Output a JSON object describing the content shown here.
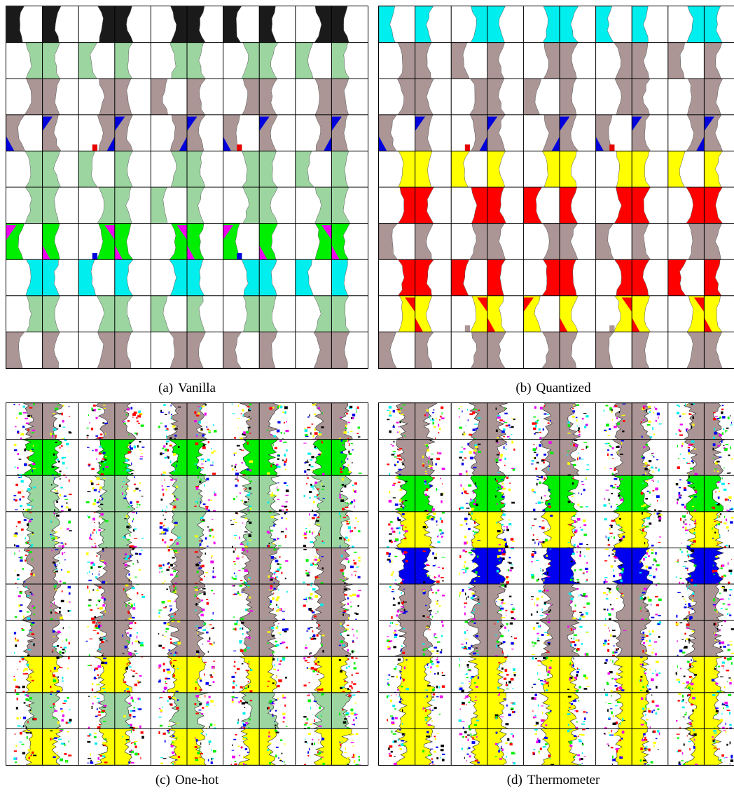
{
  "figure": {
    "panels": [
      {
        "id": "a",
        "label": "(a)",
        "caption": "Vanilla",
        "style": "smooth",
        "rows": [
          {
            "color": "#1a1a1a",
            "variant": "solid"
          },
          {
            "color": "#9cd5a0",
            "variant": "solid"
          },
          {
            "color": "#ab9595",
            "variant": "solid"
          },
          {
            "color": "#ab9595",
            "variant": "corner",
            "accent": "#0000dd",
            "accent2": "#e60000"
          },
          {
            "color": "#9cd5a0",
            "variant": "solid"
          },
          {
            "color": "#9cd5a0",
            "variant": "solid"
          },
          {
            "color": "#00ee00",
            "variant": "corner",
            "accent": "#ee00ee",
            "accent2": "#0000dd"
          },
          {
            "color": "#00eeee",
            "variant": "solid"
          },
          {
            "color": "#9cd5a0",
            "variant": "solid"
          },
          {
            "color": "#ab9595",
            "variant": "solid"
          }
        ]
      },
      {
        "id": "b",
        "label": "(b)",
        "caption": "Quantized",
        "style": "smooth",
        "rows": [
          {
            "color": "#00eeee",
            "variant": "solid"
          },
          {
            "color": "#ab9595",
            "variant": "solid"
          },
          {
            "color": "#ab9595",
            "variant": "solid"
          },
          {
            "color": "#ab9595",
            "variant": "corner",
            "accent": "#0000dd",
            "accent2": "#e60000"
          },
          {
            "color": "#ffff00",
            "variant": "solid"
          },
          {
            "color": "#ff0000",
            "variant": "solid"
          },
          {
            "color": "#ab9595",
            "variant": "solid"
          },
          {
            "color": "#ff0000",
            "variant": "solid"
          },
          {
            "color": "#ffff00",
            "variant": "corner",
            "accent": "#ff0000",
            "accent2": "#ab9595"
          },
          {
            "color": "#ab9595",
            "variant": "solid"
          }
        ]
      },
      {
        "id": "c",
        "label": "(c)",
        "caption": "One-hot",
        "style": "noisy",
        "rows": [
          {
            "color": "#ab9595",
            "variant": "noisy"
          },
          {
            "color": "#00ee00",
            "variant": "noisy"
          },
          {
            "color": "#9cd5a0",
            "variant": "noisy"
          },
          {
            "color": "#9cd5a0",
            "variant": "noisy"
          },
          {
            "color": "#ab9595",
            "variant": "noisy"
          },
          {
            "color": "#ab9595",
            "variant": "noisy"
          },
          {
            "color": "#ab9595",
            "variant": "noisy"
          },
          {
            "color": "#ffff00",
            "variant": "noisy",
            "accent": "#ff0000"
          },
          {
            "color": "#9cd5a0",
            "variant": "noisy"
          },
          {
            "color": "#ffff00",
            "variant": "noisy"
          }
        ]
      },
      {
        "id": "d",
        "label": "(d)",
        "caption": "Thermometer",
        "style": "noisy",
        "rows": [
          {
            "color": "#ab9595",
            "variant": "noisy"
          },
          {
            "color": "#ab9595",
            "variant": "noisy"
          },
          {
            "color": "#00ee00",
            "variant": "noisy"
          },
          {
            "color": "#ffff00",
            "variant": "noisy"
          },
          {
            "color": "#0000ee",
            "variant": "noisy"
          },
          {
            "color": "#ab9595",
            "variant": "noisy"
          },
          {
            "color": "#ab9595",
            "variant": "noisy"
          },
          {
            "color": "#ffff00",
            "variant": "noisy"
          },
          {
            "color": "#ffff00",
            "variant": "noisy"
          },
          {
            "color": "#ffff00",
            "variant": "noisy"
          }
        ]
      }
    ],
    "noise_palette": [
      "#000000",
      "#0000ee",
      "#ee00ee",
      "#ff0000",
      "#00eeee",
      "#00ee00",
      "#ffff00"
    ]
  }
}
